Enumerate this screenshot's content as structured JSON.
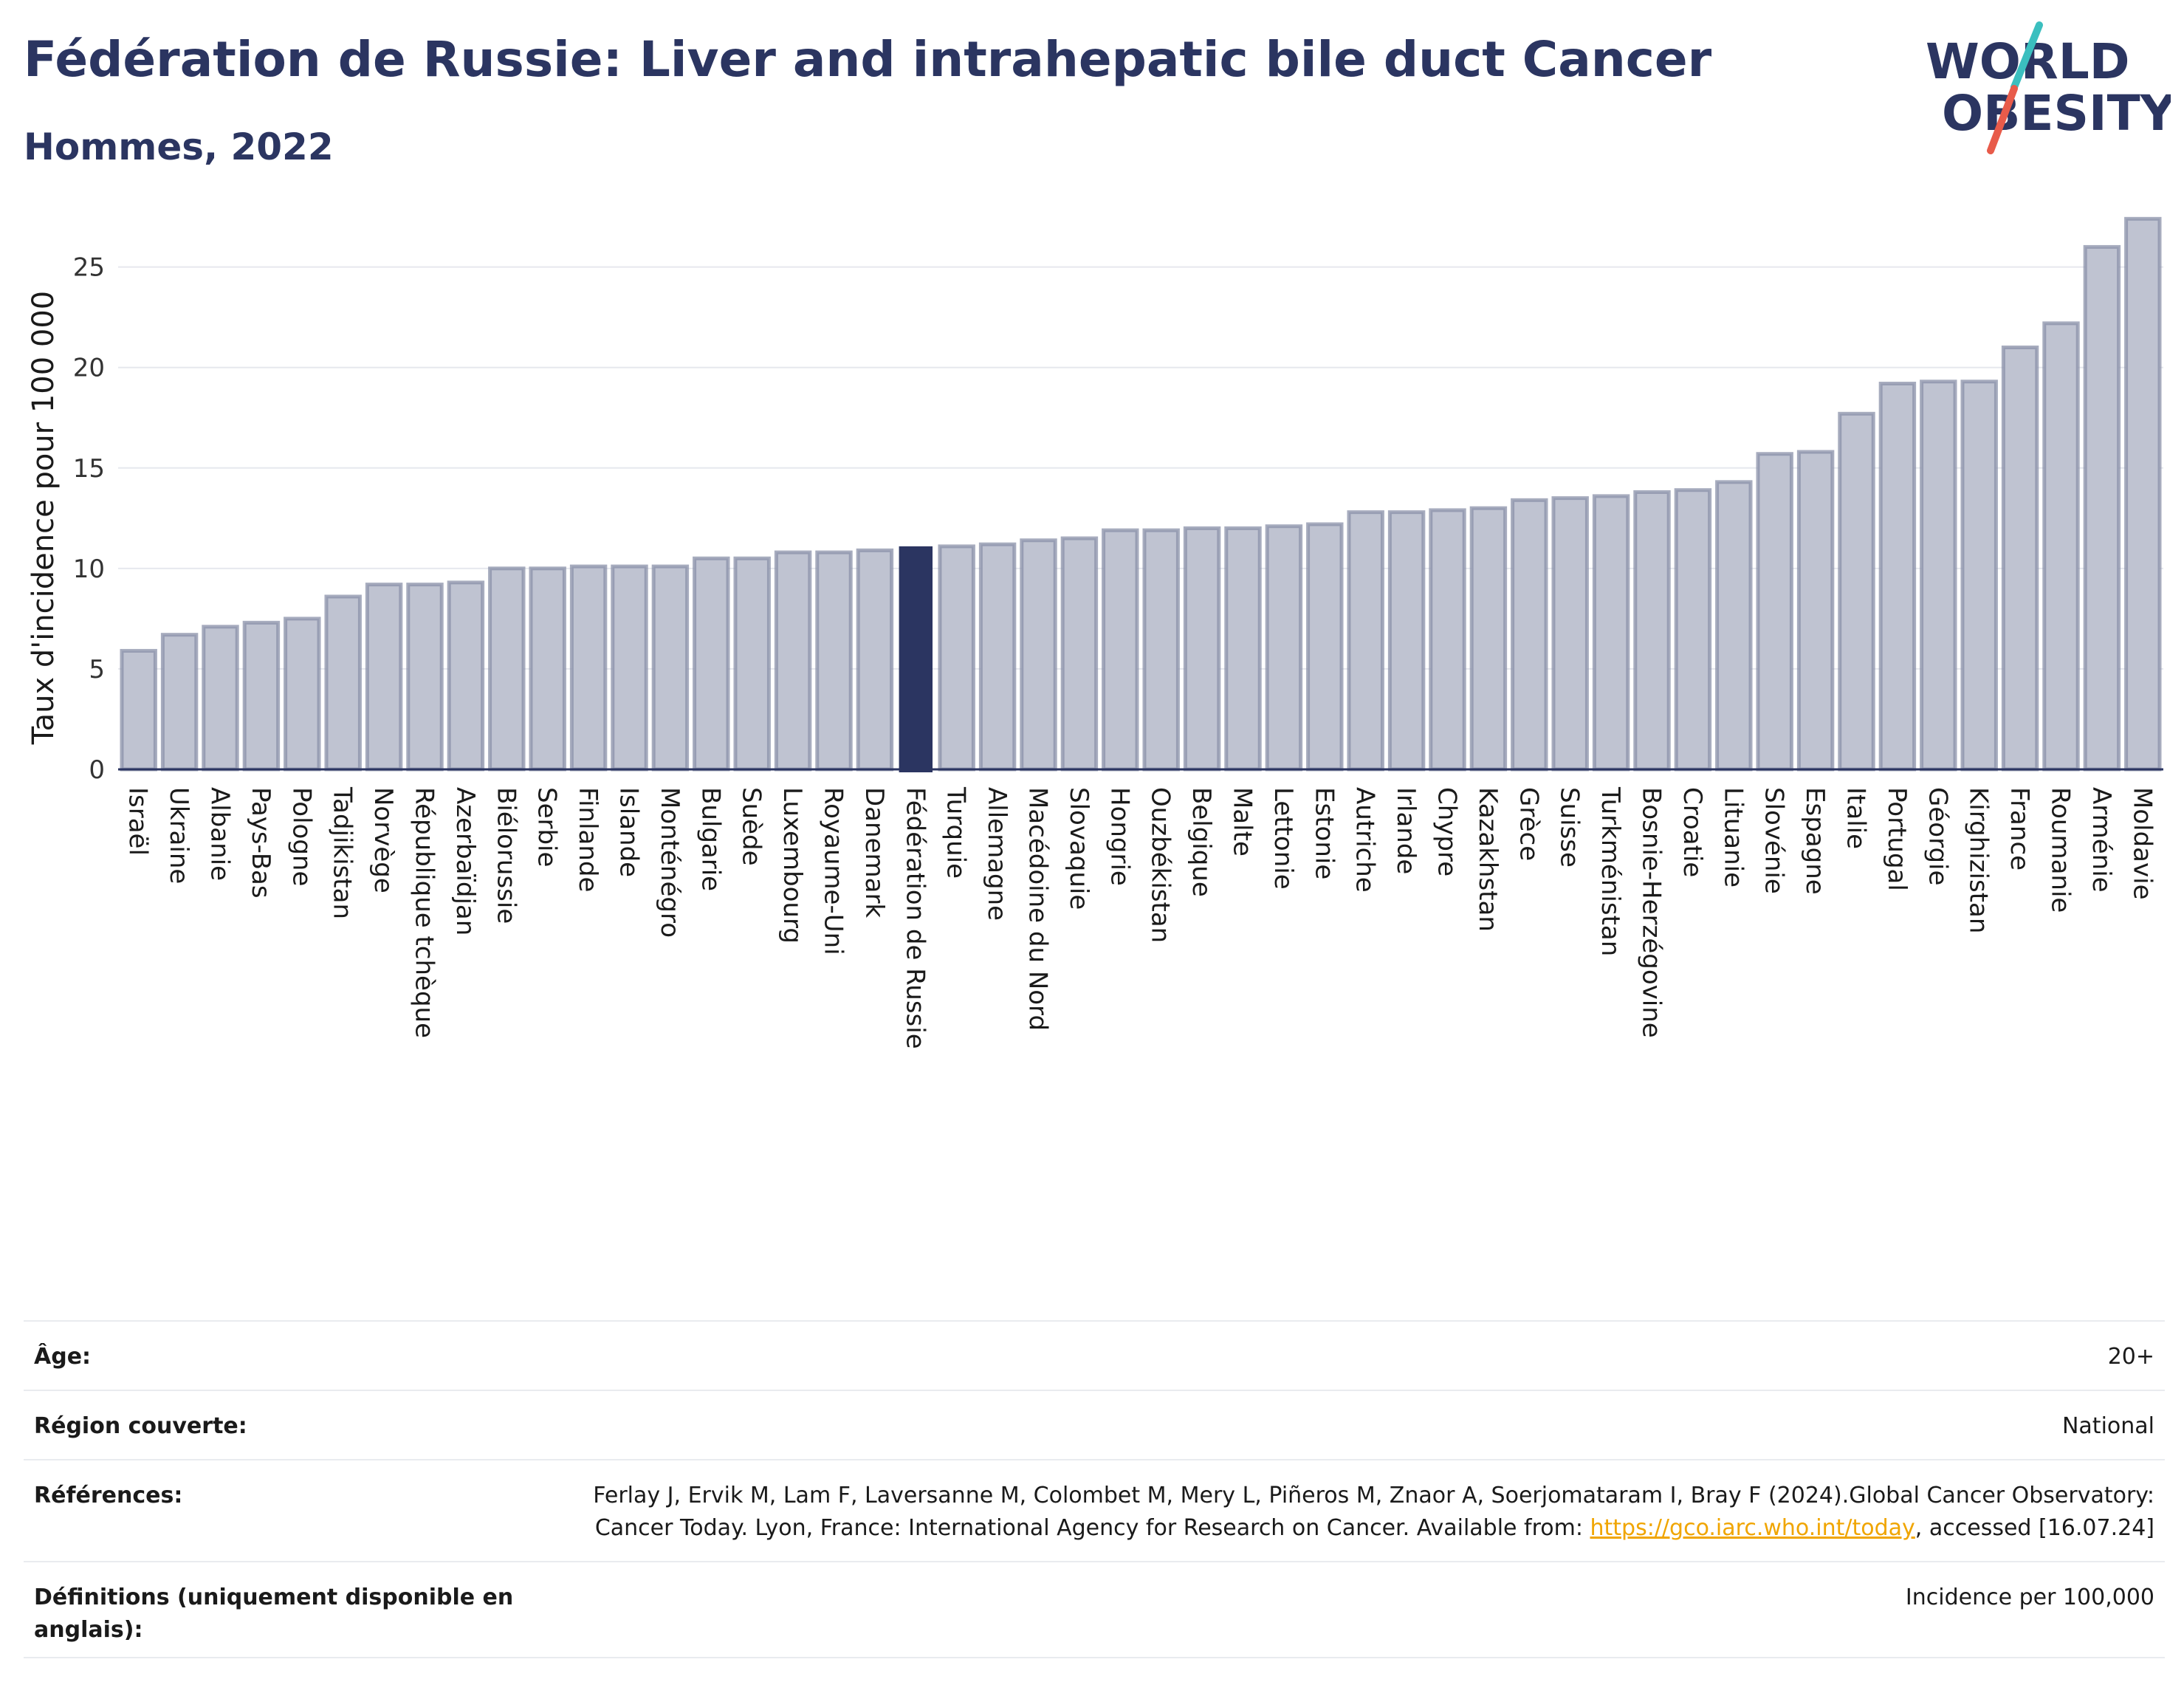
{
  "header": {
    "title": "Fédération de Russie: Liver and intrahepatic bile duct Cancer",
    "subtitle": "Hommes, 2022"
  },
  "logo": {
    "line1": "WORLD",
    "line2": "OBESITY",
    "icon": "world-obesity-logo",
    "accent_teal": "#3bbfbf",
    "accent_red": "#e85b4a"
  },
  "colors": {
    "bar": "#bfc3d1",
    "bar_border": "#8a90a8",
    "highlight": "#2b3561",
    "grid": "#e6e8ee",
    "axis": "#2b3561"
  },
  "chart_data": {
    "type": "bar",
    "ylabel": "Taux d'incidence pour 100 000",
    "ylim": [
      0,
      28
    ],
    "yticks": [
      0,
      5,
      10,
      15,
      20,
      25
    ],
    "grid": true,
    "highlight": "Fédération de Russie",
    "categories": [
      "Israël",
      "Ukraine",
      "Albanie",
      "Pays-Bas",
      "Pologne",
      "Tadjikistan",
      "Norvège",
      "République tchèque",
      "Azerbaïdjan",
      "Biélorussie",
      "Serbie",
      "Finlande",
      "Islande",
      "Monténégro",
      "Bulgarie",
      "Suède",
      "Luxembourg",
      "Royaume-Uni",
      "Danemark",
      "Fédération de Russie",
      "Turquie",
      "Allemagne",
      "Macédoine du Nord",
      "Slovaquie",
      "Hongrie",
      "Ouzbékistan",
      "Belgique",
      "Malte",
      "Lettonie",
      "Estonie",
      "Autriche",
      "Irlande",
      "Chypre",
      "Kazakhstan",
      "Grèce",
      "Suisse",
      "Turkménistan",
      "Bosnie-Herzégovine",
      "Croatie",
      "Lituanie",
      "Slovénie",
      "Espagne",
      "Italie",
      "Portugal",
      "Géorgie",
      "Kirghizistan",
      "France",
      "Roumanie",
      "Arménie",
      "Moldavie"
    ],
    "values": [
      5.9,
      6.7,
      7.1,
      7.3,
      7.5,
      8.6,
      9.2,
      9.2,
      9.3,
      10.0,
      10.0,
      10.1,
      10.1,
      10.1,
      10.5,
      10.5,
      10.8,
      10.8,
      10.9,
      11.1,
      11.1,
      11.2,
      11.4,
      11.5,
      11.9,
      11.9,
      12.0,
      12.0,
      12.1,
      12.2,
      12.8,
      12.8,
      12.9,
      13.0,
      13.4,
      13.5,
      13.6,
      13.8,
      13.9,
      14.3,
      15.7,
      15.8,
      17.7,
      19.2,
      19.3,
      19.3,
      21.0,
      22.2,
      26.0,
      27.4
    ]
  },
  "meta": [
    {
      "label": "Âge:",
      "value": "20+"
    },
    {
      "label": "Région couverte:",
      "value": "National"
    },
    {
      "label": "Références:",
      "value_before": "Ferlay J, Ervik M, Lam F, Laversanne M, Colombet M, Mery L, Piñeros M, Znaor A, Soerjomataram I, Bray F (2024).Global Cancer Observatory: Cancer Today. Lyon, France: International Agency for Research on Cancer. Available from: ",
      "link": "https://gco.iarc.who.int/today",
      "value_after": ", accessed [16.07.24]"
    },
    {
      "label": "Définitions (uniquement disponible en anglais):",
      "value": "Incidence per 100,000"
    }
  ]
}
